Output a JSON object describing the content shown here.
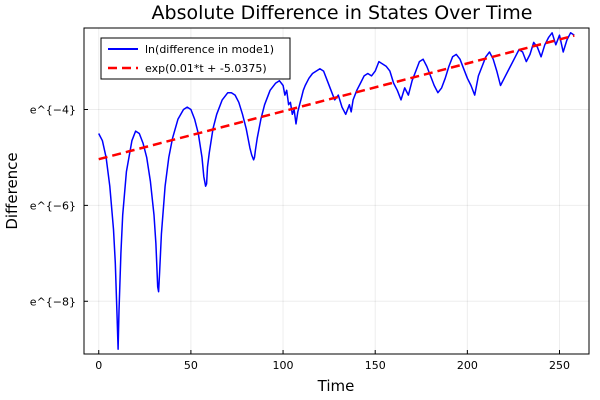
{
  "chart_data": {
    "type": "line",
    "title": "Absolute Difference in States Over Time",
    "xlabel": "Time",
    "ylabel": "Difference",
    "xlim": [
      -8,
      266
    ],
    "ylim": [
      -9.1,
      -2.3
    ],
    "x_ticks": [
      {
        "value": 0,
        "label": "0"
      },
      {
        "value": 50,
        "label": "50"
      },
      {
        "value": 100,
        "label": "100"
      },
      {
        "value": 150,
        "label": "150"
      },
      {
        "value": 200,
        "label": "200"
      },
      {
        "value": 250,
        "label": "250"
      }
    ],
    "y_ticks": [
      {
        "value": -4,
        "label": "e^{−4}"
      },
      {
        "value": -6,
        "label": "e^{−6}"
      },
      {
        "value": -8,
        "label": "e^{−8}"
      }
    ],
    "grid": true,
    "legend_position": "top-left",
    "series": [
      {
        "name": "ln(difference in mode1)",
        "color": "#0000ff",
        "style": "solid",
        "x": [
          0,
          2,
          4,
          6,
          8,
          9,
          10,
          10.5,
          11,
          12,
          13,
          15,
          18,
          20,
          22,
          24,
          26,
          28,
          30,
          31,
          32,
          32.5,
          33,
          34,
          36,
          38,
          40,
          43,
          46,
          48,
          50,
          52,
          54,
          56,
          57,
          58,
          58.5,
          59,
          60,
          62,
          64,
          67,
          70,
          72,
          74,
          76,
          78,
          80,
          82,
          83,
          84,
          84.5,
          85,
          86,
          88,
          90,
          93,
          96,
          98,
          100,
          101,
          102,
          103,
          104,
          105,
          106,
          107,
          108,
          109,
          110,
          111,
          112,
          114,
          116,
          118,
          120,
          122,
          124,
          126,
          128,
          130,
          132,
          134,
          136,
          137,
          138,
          140,
          142,
          144,
          146,
          148,
          150,
          152,
          154,
          156,
          158,
          160,
          162,
          164,
          166,
          168,
          170,
          172,
          174,
          176,
          178,
          180,
          182,
          184,
          186,
          188,
          190,
          192,
          194,
          196,
          198,
          200,
          202,
          204,
          206,
          208,
          210,
          212,
          214,
          216,
          218,
          220,
          222,
          224,
          226,
          228,
          230,
          232,
          234,
          236,
          238,
          240,
          242,
          244,
          246,
          248,
          250,
          252,
          254,
          256,
          258
        ],
        "y": [
          -4.5,
          -4.65,
          -5.0,
          -5.6,
          -6.5,
          -7.2,
          -8.4,
          -9.0,
          -8.2,
          -7.0,
          -6.2,
          -5.3,
          -4.65,
          -4.45,
          -4.5,
          -4.7,
          -5.0,
          -5.5,
          -6.2,
          -6.8,
          -7.7,
          -7.8,
          -7.4,
          -6.6,
          -5.6,
          -5.0,
          -4.6,
          -4.2,
          -4.0,
          -3.95,
          -4.0,
          -4.2,
          -4.5,
          -5.0,
          -5.4,
          -5.6,
          -5.55,
          -5.2,
          -4.9,
          -4.4,
          -4.1,
          -3.8,
          -3.65,
          -3.65,
          -3.7,
          -3.85,
          -4.1,
          -4.4,
          -4.8,
          -4.95,
          -5.05,
          -5.0,
          -4.85,
          -4.6,
          -4.2,
          -3.9,
          -3.6,
          -3.45,
          -3.4,
          -3.5,
          -3.7,
          -3.6,
          -3.9,
          -3.85,
          -4.1,
          -4.0,
          -4.3,
          -4.05,
          -3.9,
          -3.75,
          -3.6,
          -3.5,
          -3.35,
          -3.25,
          -3.2,
          -3.15,
          -3.2,
          -3.4,
          -3.6,
          -3.8,
          -3.7,
          -3.95,
          -4.1,
          -3.9,
          -4.05,
          -3.8,
          -3.6,
          -3.45,
          -3.3,
          -3.25,
          -3.3,
          -3.2,
          -3.0,
          -3.05,
          -3.1,
          -3.2,
          -3.45,
          -3.6,
          -3.8,
          -3.55,
          -3.7,
          -3.4,
          -3.2,
          -3.0,
          -2.95,
          -3.1,
          -3.3,
          -3.5,
          -3.65,
          -3.55,
          -3.35,
          -3.1,
          -2.9,
          -2.85,
          -2.95,
          -3.15,
          -3.35,
          -3.5,
          -3.7,
          -3.3,
          -3.1,
          -2.9,
          -2.8,
          -2.95,
          -3.2,
          -3.5,
          -3.35,
          -3.2,
          -3.05,
          -2.9,
          -2.75,
          -2.8,
          -3.0,
          -2.85,
          -2.6,
          -2.7,
          -2.9,
          -2.65,
          -2.5,
          -2.4,
          -2.65,
          -2.45,
          -2.8,
          -2.55,
          -2.4,
          -2.45
        ]
      },
      {
        "name": "exp(0.01*t + -5.0375)",
        "color": "#ff0000",
        "style": "dashed",
        "x": [
          0,
          258
        ],
        "y": [
          -5.0375,
          -2.4575
        ]
      }
    ]
  }
}
